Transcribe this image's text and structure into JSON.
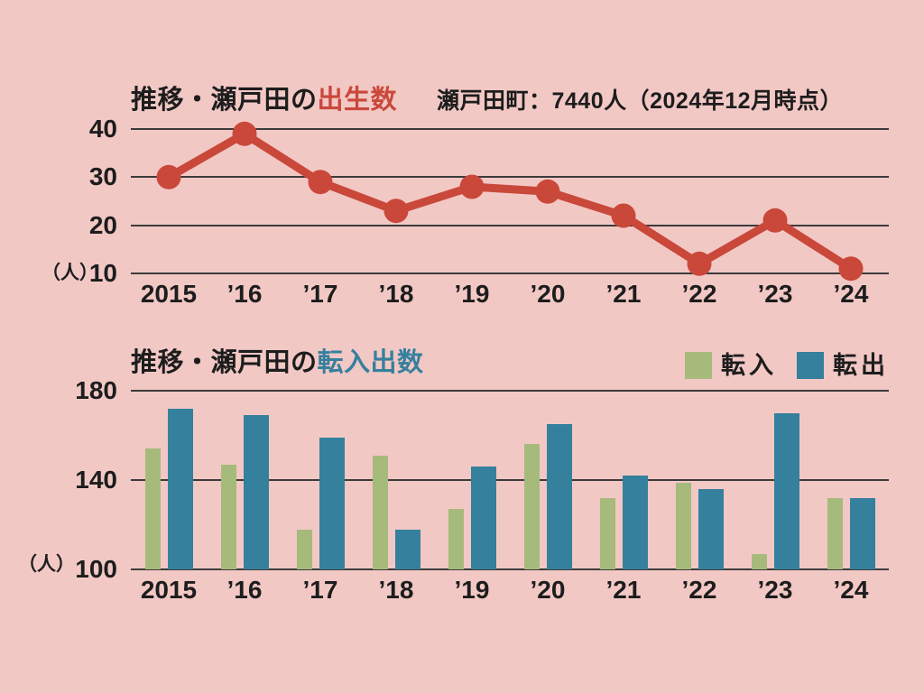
{
  "page": {
    "background_color": "#f2c8c5",
    "text_color": "#1d1d1d"
  },
  "chart_data": [
    {
      "type": "line",
      "title": {
        "prefix": "推移・瀬戸田の",
        "highlight": "出生数",
        "highlight_color": "#c9483a"
      },
      "annotation": "瀬戸田町：7440人（2024年12月時点）",
      "unit_label": "（人）",
      "categories": [
        "2015",
        "’16",
        "’17",
        "’18",
        "’19",
        "’20",
        "’21",
        "’22",
        "’23",
        "’24"
      ],
      "values": [
        30,
        39,
        29,
        23,
        28,
        27,
        22,
        12,
        21,
        11
      ],
      "yticks": [
        40,
        30,
        20,
        10
      ],
      "ylim": [
        10,
        40
      ],
      "line_color": "#c9483a",
      "grid": true,
      "legend_position": "none"
    },
    {
      "type": "bar",
      "title": {
        "prefix": "推移・瀬戸田の",
        "highlight": "転入出数",
        "highlight_color": "#35809d"
      },
      "unit_label": "（人）",
      "categories": [
        "2015",
        "’16",
        "’17",
        "’18",
        "’19",
        "’20",
        "’21",
        "’22",
        "’23",
        "’24"
      ],
      "series": [
        {
          "name": "転入",
          "color": "#a6ba7c",
          "values": [
            154,
            147,
            118,
            151,
            127,
            156,
            132,
            139,
            107,
            132
          ]
        },
        {
          "name": "転出",
          "color": "#35809d",
          "values": [
            172,
            169,
            159,
            118,
            146,
            165,
            142,
            136,
            170,
            132
          ]
        }
      ],
      "yticks": [
        180,
        140,
        100
      ],
      "ylim": [
        100,
        180
      ],
      "grid": true,
      "legend_position": "top-right"
    }
  ]
}
